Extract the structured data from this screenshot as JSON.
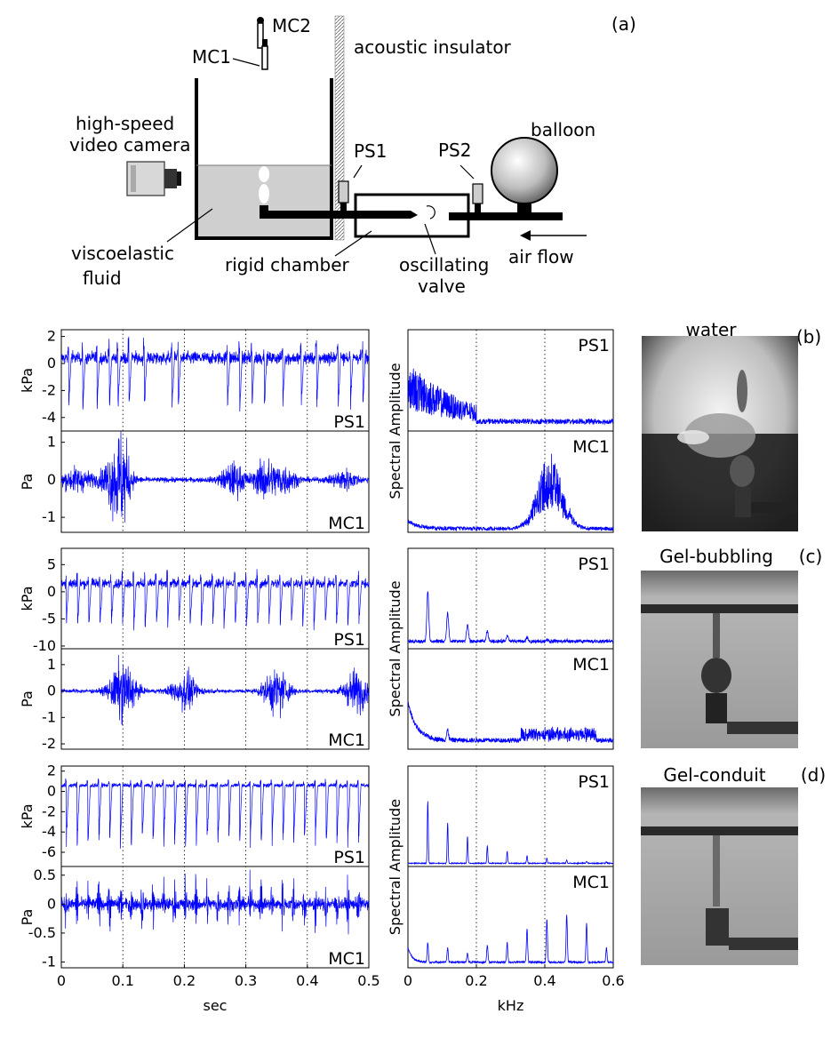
{
  "schematic": {
    "panel_label": "(a)",
    "labels": {
      "mc1": "MC1",
      "mc2": "MC2",
      "insulator": "acoustic insulator",
      "camera_l1": "high-speed",
      "camera_l2": "video camera",
      "ps1": "PS1",
      "ps2": "PS2",
      "balloon": "balloon",
      "fluid_l1": "viscoelastic",
      "fluid_l2": "fluid",
      "chamber": "rigid chamber",
      "valve_l1": "oscillating",
      "valve_l2": "valve",
      "airflow": "air flow"
    }
  },
  "rows": [
    {
      "label": "(b)",
      "photo_title": "water",
      "time": {
        "top": {
          "name": "PS1",
          "ylabel": "kPa",
          "ylim": [
            -5,
            2.5
          ],
          "yticks": [
            2,
            0,
            -2,
            -4
          ],
          "base": 0.4,
          "noise": 0.45,
          "dips": [
            0.012,
            0.035,
            0.058,
            0.078,
            0.092,
            0.11,
            0.135,
            0.18,
            0.19,
            0.27,
            0.29,
            0.31,
            0.33,
            0.36,
            0.39,
            0.415,
            0.45,
            0.47,
            0.49
          ],
          "dip_depth": -4.2
        },
        "bottom": {
          "name": "MC1",
          "ylabel": "Pa",
          "ylim": [
            -1.4,
            1.3
          ],
          "yticks": [
            1,
            0,
            -1
          ],
          "noise": 0.08,
          "bursts": [
            [
              0.09,
              1.1,
              0.02
            ],
            [
              0.025,
              0.35,
              0.025
            ],
            [
              0.33,
              0.6,
              0.015
            ],
            [
              0.36,
              0.45,
              0.02
            ],
            [
              0.28,
              0.5,
              0.02
            ],
            [
              0.46,
              0.3,
              0.02
            ],
            [
              0.1,
              0.7,
              0.01
            ]
          ]
        }
      },
      "spec": {
        "top": {
          "name": "PS1",
          "kind": "ps1_water"
        },
        "bottom": {
          "name": "MC1",
          "kind": "mc1_water"
        }
      }
    },
    {
      "label": "(c)",
      "photo_title": "Gel-bubbling",
      "time": {
        "top": {
          "name": "PS1",
          "ylabel": "kPa",
          "ylim": [
            -10.5,
            8
          ],
          "yticks": [
            5,
            0,
            -5,
            -10
          ],
          "base": 1.5,
          "noise": 0.8,
          "period": 0.0183,
          "dip_depth": -9
        },
        "bottom": {
          "name": "MC1",
          "ylabel": "Pa",
          "ylim": [
            -2.2,
            1.6
          ],
          "yticks": [
            1,
            0,
            -1,
            -2
          ],
          "noise": 0.09,
          "bursts": [
            [
              0.1,
              1.3,
              0.02
            ],
            [
              0.2,
              0.8,
              0.02
            ],
            [
              0.35,
              1.0,
              0.02
            ],
            [
              0.48,
              0.9,
              0.02
            ]
          ]
        }
      },
      "spec": {
        "top": {
          "name": "PS1",
          "kind": "ps1_bub"
        },
        "bottom": {
          "name": "MC1",
          "kind": "mc1_bub"
        }
      }
    },
    {
      "label": "(d)",
      "photo_title": "Gel-conduit",
      "time": {
        "top": {
          "name": "PS1",
          "ylabel": "kPa",
          "ylim": [
            -7.4,
            2.5
          ],
          "yticks": [
            2,
            0,
            -2,
            -4,
            -6
          ],
          "base": 0.6,
          "noise": 0.2,
          "period": 0.0176,
          "dip_depth": -6.6
        },
        "bottom": {
          "name": "MC1",
          "ylabel": "Pa",
          "ylim": [
            -1.1,
            0.65
          ],
          "yticks": [
            0.5,
            0,
            -0.5,
            -1
          ],
          "noise": 0.12,
          "period": 0.0176
        }
      },
      "spec": {
        "top": {
          "name": "PS1",
          "kind": "ps1_cond"
        },
        "bottom": {
          "name": "MC1",
          "kind": "mc1_cond"
        }
      }
    }
  ],
  "time_axis": {
    "xlabel": "sec",
    "xlim": [
      0,
      0.5
    ],
    "ticks": [
      "0",
      "0.1",
      "0.2",
      "0.3",
      "0.4",
      "0.5"
    ]
  },
  "freq_axis": {
    "xlabel": "kHz",
    "xlim": [
      0,
      0.6
    ],
    "ticks": [
      "0",
      "0.2",
      "0.4",
      "0.6"
    ]
  },
  "spec_ylabel": "Spectral Amplitude",
  "colors": {
    "trace": "#0000ff",
    "axis": "#000000",
    "grid": "#000000"
  }
}
